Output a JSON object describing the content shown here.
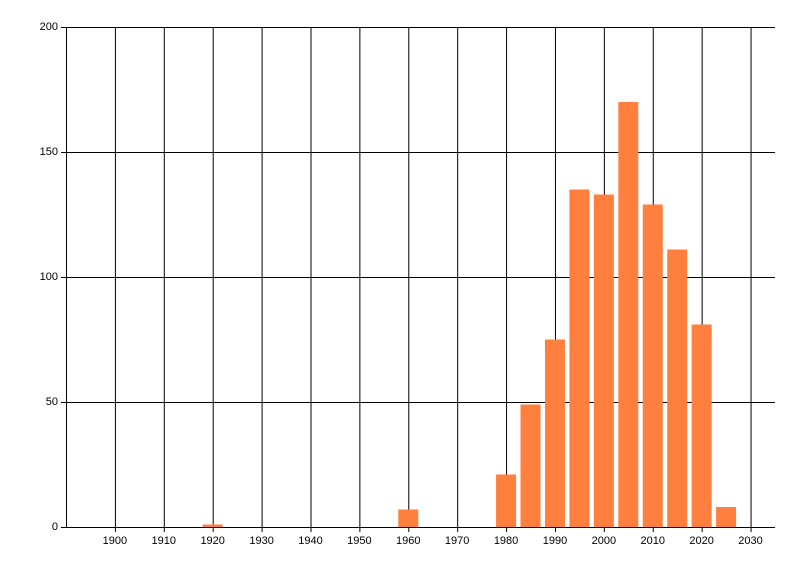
{
  "chart_data": {
    "type": "bar",
    "x": [
      1920,
      1960,
      1980,
      1985,
      1990,
      1995,
      2000,
      2005,
      2010,
      2015,
      2020,
      2025
    ],
    "values": [
      1,
      7,
      21,
      49,
      75,
      135,
      133,
      170,
      129,
      111,
      81,
      8
    ],
    "color": "#ff7f3f",
    "xlim": [
      1890,
      2035
    ],
    "xticks": [
      1900,
      1910,
      1920,
      1930,
      1940,
      1950,
      1960,
      1970,
      1980,
      1990,
      2000,
      2010,
      2020,
      2030
    ],
    "ylim": [
      0,
      200
    ],
    "yticks": [
      0,
      50,
      100,
      150,
      200
    ],
    "grid": true
  }
}
